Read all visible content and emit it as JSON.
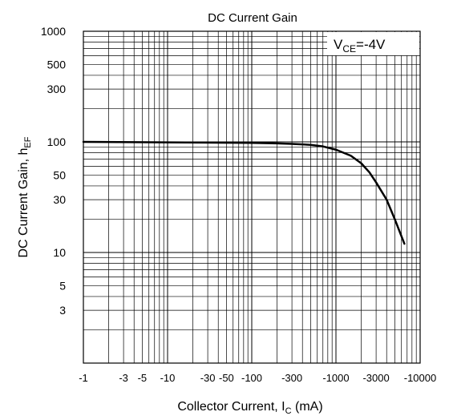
{
  "chart_data": {
    "type": "line",
    "title": "DC Current Gain",
    "xlabel": {
      "main": "Collector Current, I",
      "sub": "C",
      "suffix": " (mA)"
    },
    "ylabel": {
      "main": "DC Current Gain, h",
      "sub": "EF"
    },
    "annotation": {
      "main": "V",
      "sub": "CE",
      "suffix": "=-4V"
    },
    "x_scale": "log",
    "y_scale": "log",
    "xlim": [
      1,
      10000
    ],
    "ylim": [
      1,
      1000
    ],
    "x_direction": "negative current, magnitude increases to the right",
    "x_tick_values": [
      1,
      3,
      5,
      10,
      30,
      50,
      100,
      300,
      1000,
      3000,
      10000
    ],
    "x_tick_labels": [
      "-1",
      "-3",
      "-5",
      "-10",
      "-30",
      "-50",
      "-100",
      "-300",
      "-1000",
      "-3000",
      "-10000"
    ],
    "y_tick_values": [
      1000,
      500,
      300,
      100,
      50,
      30,
      10,
      5,
      3
    ],
    "y_tick_labels": [
      "1000",
      "500",
      "300",
      "100",
      "50",
      "30",
      "10",
      "5",
      "3"
    ],
    "grid": true,
    "series": [
      {
        "color": "#000000",
        "x": [
          1,
          10,
          100,
          200,
          300,
          500,
          700,
          1000,
          1500,
          2000,
          2500,
          3000,
          4000,
          5000,
          6000,
          6500
        ],
        "y": [
          100,
          99,
          98,
          97,
          96,
          94,
          91,
          85,
          75,
          64,
          53,
          43,
          30,
          20,
          14,
          12
        ]
      }
    ]
  }
}
